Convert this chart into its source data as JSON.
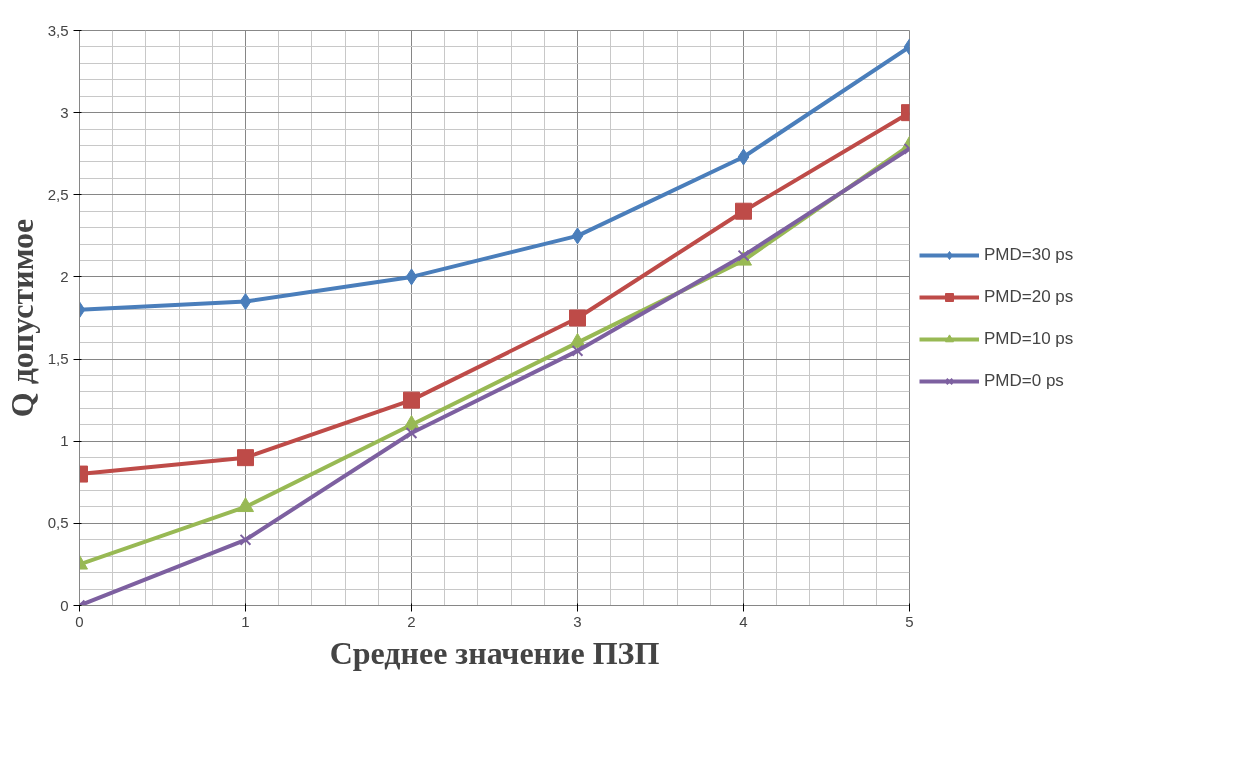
{
  "chart_data": {
    "type": "line",
    "xlabel": "Среднее значение ПЗП",
    "ylabel": "Q допустимое",
    "x": [
      0,
      1,
      2,
      3,
      4,
      5
    ],
    "xlim": [
      0,
      5
    ],
    "xticks": [
      0,
      1,
      2,
      3,
      4,
      5
    ],
    "ylim": [
      0,
      3.5
    ],
    "yticks": [
      0,
      {
        "value": 0.5,
        "label": "0,5"
      },
      1,
      {
        "value": 1.5,
        "label": "1,5"
      },
      2,
      {
        "value": 2.5,
        "label": "2,5"
      },
      3,
      {
        "value": 3.5,
        "label": "3,5"
      }
    ],
    "grid": true,
    "legend": "right",
    "line_style": "solid",
    "series": [
      {
        "name": "PMD=30 ps",
        "color": "#4a7ebb",
        "marker": "diamond",
        "values": [
          1.8,
          1.85,
          2.0,
          2.25,
          2.73,
          3.4
        ]
      },
      {
        "name": "PMD=20 ps",
        "color": "#be4b48",
        "marker": "square",
        "values": [
          0.8,
          0.9,
          1.25,
          1.75,
          2.4,
          3.0
        ]
      },
      {
        "name": "PMD=10 ps",
        "color": "#98b954",
        "marker": "triangle",
        "values": [
          0.25,
          0.6,
          1.1,
          1.6,
          2.1,
          2.8
        ]
      },
      {
        "name": "PMD=0 ps",
        "color": "#7d60a0",
        "marker": "x",
        "values": [
          0,
          0.4,
          1.05,
          1.55,
          2.13,
          2.78
        ]
      }
    ]
  }
}
